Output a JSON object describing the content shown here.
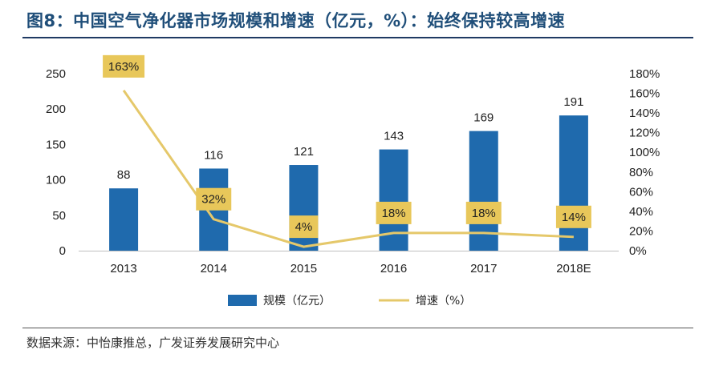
{
  "header": {
    "title": "图8：中国空气净化器市场规模和增速（亿元，%）：始终保持较高增速"
  },
  "footer": {
    "source": "数据来源：中怡康推总，广发证券发展研究中心"
  },
  "chart_data": {
    "type": "bar",
    "categories": [
      "2013",
      "2014",
      "2015",
      "2016",
      "2017",
      "2018E"
    ],
    "series": [
      {
        "name": "规模（亿元）",
        "type": "bar",
        "axis": "left",
        "values": [
          88,
          116,
          121,
          143,
          169,
          191
        ],
        "labels": [
          "88",
          "116",
          "121",
          "143",
          "169",
          "191"
        ],
        "color": "#1f6aad"
      },
      {
        "name": "增速（%）",
        "type": "line",
        "axis": "right",
        "values": [
          163,
          32,
          4,
          18,
          18,
          14
        ],
        "labels": [
          "163%",
          "32%",
          "4%",
          "18%",
          "18%",
          "14%"
        ],
        "color": "#e5c86a",
        "label_bg": "#e8c75a"
      }
    ],
    "y_left": {
      "min": 0,
      "max": 250,
      "ticks": [
        "0",
        "50",
        "100",
        "150",
        "200",
        "250"
      ]
    },
    "y_right": {
      "min": 0,
      "max": 180,
      "ticks": [
        "0%",
        "20%",
        "40%",
        "60%",
        "80%",
        "100%",
        "120%",
        "140%",
        "160%",
        "180%"
      ]
    },
    "title": "",
    "xlabel": "",
    "ylabel": "",
    "grid": false,
    "legend": "bottom"
  }
}
